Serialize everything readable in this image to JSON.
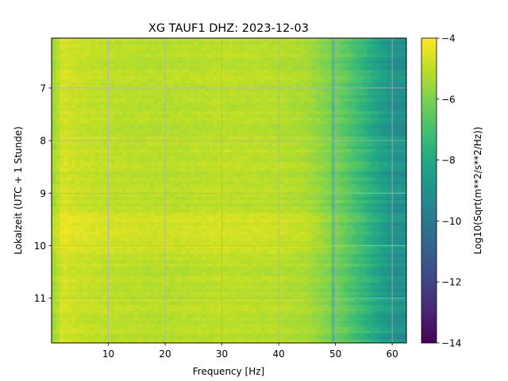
{
  "chart_data": {
    "type": "heatmap",
    "title": "XG TAUF1  DHZ: 2023-12-03",
    "xlabel": "Frequency [Hz]",
    "ylabel": "Lokalzeit (UTC + 1 Stunde)",
    "xlim": [
      0,
      62.5
    ],
    "ylim": [
      6.05,
      11.85
    ],
    "y_inverted": true,
    "xticks": [
      10,
      20,
      30,
      40,
      50,
      60
    ],
    "yticks": [
      7,
      8,
      9,
      10,
      11
    ],
    "grid": true,
    "colormap": "viridis",
    "colorbar": {
      "label": "Log10(Sqrt(m**2/s**2/Hz))",
      "min": -14,
      "max": -4,
      "ticks": [
        -14,
        -12,
        -10,
        -8,
        -6,
        -4
      ]
    },
    "frequency_profile": {
      "x": [
        0,
        2,
        4,
        10,
        20,
        30,
        40,
        45,
        48,
        50,
        52,
        55,
        58,
        60,
        62.5
      ],
      "values": [
        -5.6,
        -4.6,
        -4.8,
        -5.0,
        -5.1,
        -5.0,
        -5.1,
        -5.3,
        -5.8,
        -6.1,
        -6.6,
        -7.4,
        -8.3,
        -8.8,
        -9.0
      ]
    },
    "bright_period": {
      "y_start": 9.2,
      "y_end": 10.3,
      "offset": 0.45
    }
  }
}
